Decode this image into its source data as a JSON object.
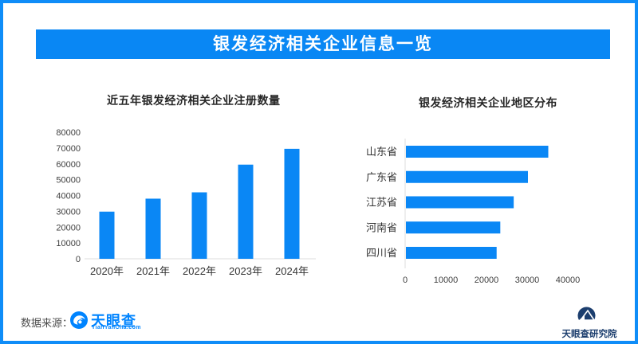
{
  "banner": {
    "title": "银发经济相关企业信息一览",
    "bg_color": "#0987f4",
    "text_color": "#ffffff"
  },
  "frame_border_color": "#0f8df8",
  "chart_data": [
    {
      "type": "bar",
      "orientation": "vertical",
      "title": "近五年银发经济相关企业注册数量",
      "categories": [
        "2020年",
        "2021年",
        "2022年",
        "2023年",
        "2024年"
      ],
      "values": [
        29800,
        38000,
        42000,
        59500,
        69500
      ],
      "ylim": [
        0,
        80000
      ],
      "yticks": [
        0,
        10000,
        20000,
        30000,
        40000,
        50000,
        60000,
        70000,
        80000
      ],
      "xlabel": "",
      "ylabel": "",
      "grid": false,
      "legend": "none",
      "bar_color": "#0a87f5"
    },
    {
      "type": "bar",
      "orientation": "horizontal",
      "title": "银发经济相关企业地区分布",
      "categories": [
        "山东省",
        "广东省",
        "江苏省",
        "河南省",
        "四川省"
      ],
      "values": [
        35000,
        30000,
        26500,
        23200,
        22300
      ],
      "xlim": [
        0,
        45000
      ],
      "xticks": [
        0,
        10000,
        20000,
        30000,
        40000
      ],
      "xlabel": "",
      "ylabel": "",
      "grid": false,
      "legend": "none",
      "bar_color": "#0a87f5"
    }
  ],
  "footer": {
    "source_label": "数据来源：",
    "tianyancha": {
      "name": "天眼查",
      "domain": "TianYanCha.com",
      "brand_color": "#0084ff"
    },
    "institute": {
      "name": "天眼查研究院",
      "brand_color": "#1c3e6e"
    }
  }
}
